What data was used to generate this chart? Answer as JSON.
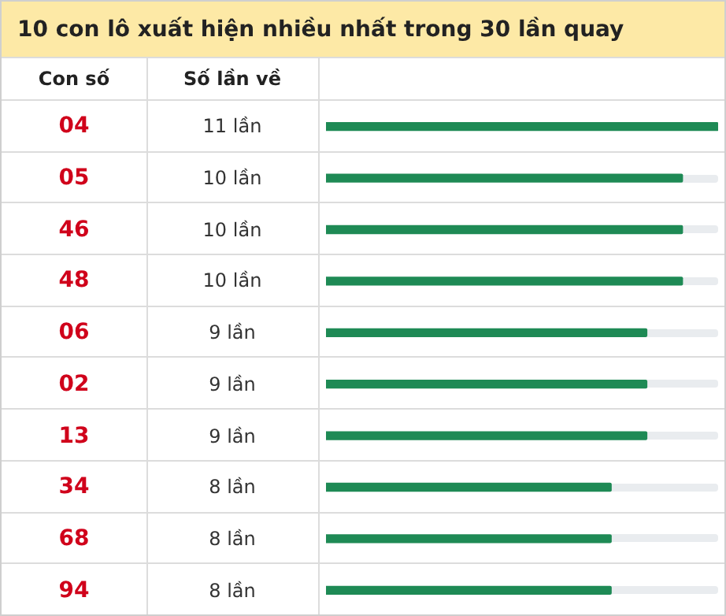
{
  "chart_data": {
    "type": "bar",
    "orientation": "horizontal",
    "title": "10 con lô xuất hiện nhiều nhất trong 30 lần quay",
    "annotations": [
      "Con số",
      "Số lần về"
    ],
    "categories": [
      "04",
      "05",
      "46",
      "48",
      "06",
      "02",
      "13",
      "34",
      "68",
      "94"
    ],
    "values": [
      11,
      10,
      10,
      10,
      9,
      9,
      9,
      8,
      8,
      8
    ],
    "value_labels": [
      "11 lần",
      "10 lần",
      "10 lần",
      "10 lần",
      "9 lần",
      "9 lần",
      "9 lần",
      "8 lần",
      "8 lần",
      "8 lần"
    ],
    "color": "#1e8a55",
    "xlim": [
      0,
      11
    ],
    "tick_labels": false,
    "legend": false
  }
}
